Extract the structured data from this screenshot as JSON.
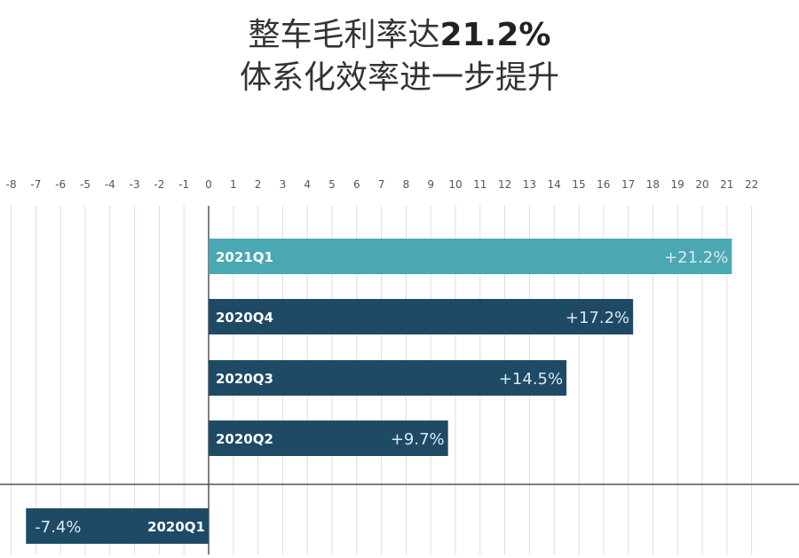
{
  "title": {
    "line1_prefix": "整车毛利率达",
    "line1_highlight": "21.2%",
    "line2": "体系化效率进一步提升"
  },
  "chart_data": {
    "type": "bar",
    "orientation": "horizontal",
    "xlim": [
      -8,
      22
    ],
    "ticks": [
      -8,
      -7,
      -6,
      -5,
      -4,
      -3,
      -2,
      -1,
      0,
      1,
      2,
      3,
      4,
      5,
      6,
      7,
      8,
      9,
      10,
      11,
      12,
      13,
      14,
      15,
      16,
      17,
      18,
      19,
      20,
      21,
      22
    ],
    "grid": true,
    "categories": [
      "2021Q1",
      "2020Q4",
      "2020Q3",
      "2020Q2",
      "2020Q1"
    ],
    "values": [
      21.2,
      17.2,
      14.5,
      9.7,
      -7.4
    ],
    "value_labels": [
      "+21.2%",
      "+17.2%",
      "+14.5%",
      "+9.7%",
      "-7.4%"
    ],
    "colors": [
      "#4aa8b3",
      "#1f4a66",
      "#1f4a66",
      "#1f4a66",
      "#1f4a66"
    ]
  }
}
